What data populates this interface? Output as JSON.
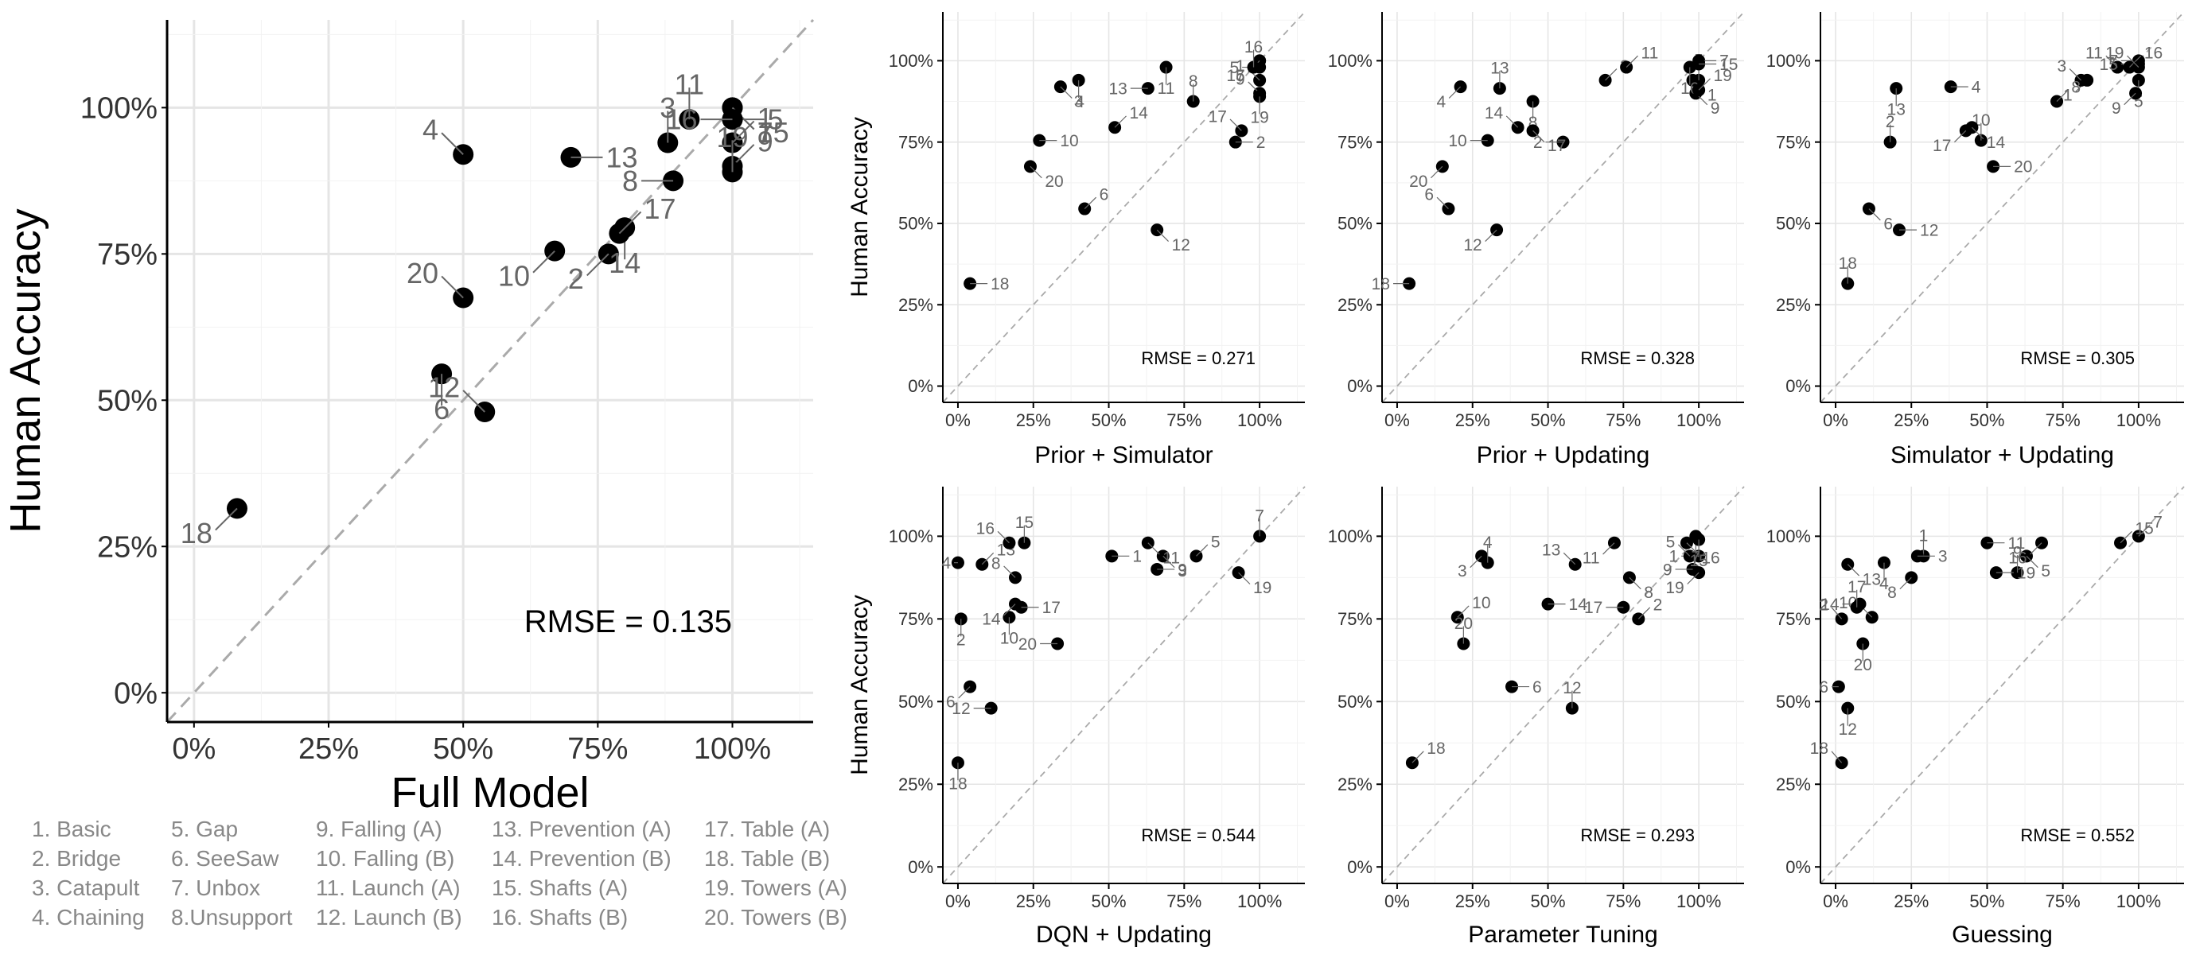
{
  "chart_data": [
    {
      "type": "scatter",
      "xlabel": "Full Model",
      "ylabel": "Human Accuracy",
      "xlim": [
        -0.05,
        1.15
      ],
      "ylim": [
        -0.05,
        1.15
      ],
      "x_ticks": [
        "0%",
        "25%",
        "50%",
        "75%",
        "100%"
      ],
      "y_ticks": [
        "0%",
        "25%",
        "50%",
        "75%",
        "100%"
      ],
      "grid": true,
      "reference_line": "y = x",
      "annotation": "RMSE = 0.135",
      "points": [
        {
          "label": "1",
          "x": 1.0,
          "y": 0.94
        },
        {
          "label": "2",
          "x": 0.77,
          "y": 0.75
        },
        {
          "label": "3",
          "x": 0.88,
          "y": 0.94
        },
        {
          "label": "4",
          "x": 0.5,
          "y": 0.92
        },
        {
          "label": "5",
          "x": 1.0,
          "y": 0.98
        },
        {
          "label": "6",
          "x": 0.46,
          "y": 0.545
        },
        {
          "label": "7",
          "x": 1.0,
          "y": 1.0
        },
        {
          "label": "8",
          "x": 0.89,
          "y": 0.875
        },
        {
          "label": "9",
          "x": 1.0,
          "y": 0.9
        },
        {
          "label": "10",
          "x": 0.67,
          "y": 0.755
        },
        {
          "label": "11",
          "x": 0.92,
          "y": 0.98
        },
        {
          "label": "12",
          "x": 0.54,
          "y": 0.48
        },
        {
          "label": "13",
          "x": 0.7,
          "y": 0.915
        },
        {
          "label": "14",
          "x": 0.8,
          "y": 0.795
        },
        {
          "label": "15",
          "x": 1.0,
          "y": 1.0
        },
        {
          "label": "16",
          "x": 1.0,
          "y": 0.98
        },
        {
          "label": "17",
          "x": 0.79,
          "y": 0.785
        },
        {
          "label": "18",
          "x": 0.08,
          "y": 0.315
        },
        {
          "label": "19",
          "x": 1.0,
          "y": 0.89
        },
        {
          "label": "20",
          "x": 0.5,
          "y": 0.675
        }
      ]
    },
    {
      "type": "scatter",
      "xlabel": "Prior + Simulator",
      "ylabel": "Human Accuracy",
      "xlim": [
        -0.05,
        1.15
      ],
      "ylim": [
        -0.05,
        1.15
      ],
      "x_ticks": [
        "0%",
        "25%",
        "50%",
        "75%",
        "100%"
      ],
      "y_ticks": [
        "0%",
        "25%",
        "50%",
        "75%",
        "100%"
      ],
      "grid": true,
      "reference_line": "y = x",
      "annotation": "RMSE = 0.271",
      "points": [
        {
          "label": "1",
          "x": 1.0,
          "y": 0.94
        },
        {
          "label": "2",
          "x": 0.92,
          "y": 0.75
        },
        {
          "label": "3",
          "x": 0.4,
          "y": 0.94
        },
        {
          "label": "4",
          "x": 0.34,
          "y": 0.92
        },
        {
          "label": "5",
          "x": 1.0,
          "y": 0.98
        },
        {
          "label": "6",
          "x": 0.42,
          "y": 0.545
        },
        {
          "label": "7",
          "x": 1.0,
          "y": 1.0
        },
        {
          "label": "8",
          "x": 0.78,
          "y": 0.875
        },
        {
          "label": "9",
          "x": 1.0,
          "y": 0.9
        },
        {
          "label": "10",
          "x": 0.27,
          "y": 0.755
        },
        {
          "label": "11",
          "x": 0.69,
          "y": 0.98
        },
        {
          "label": "12",
          "x": 0.66,
          "y": 0.48
        },
        {
          "label": "13",
          "x": 0.63,
          "y": 0.915
        },
        {
          "label": "14",
          "x": 0.52,
          "y": 0.795
        },
        {
          "label": "15",
          "x": 1.0,
          "y": 1.0
        },
        {
          "label": "16",
          "x": 0.98,
          "y": 0.98
        },
        {
          "label": "17",
          "x": 0.94,
          "y": 0.785
        },
        {
          "label": "18",
          "x": 0.04,
          "y": 0.315
        },
        {
          "label": "19",
          "x": 1.0,
          "y": 0.89
        },
        {
          "label": "20",
          "x": 0.24,
          "y": 0.675
        }
      ]
    },
    {
      "type": "scatter",
      "xlabel": "Prior + Updating",
      "ylabel": "",
      "xlim": [
        -0.05,
        1.15
      ],
      "ylim": [
        -0.05,
        1.15
      ],
      "x_ticks": [
        "0%",
        "25%",
        "50%",
        "75%",
        "100%"
      ],
      "y_ticks": [
        "0%",
        "25%",
        "50%",
        "75%",
        "100%"
      ],
      "grid": true,
      "reference_line": "y = x",
      "annotation": "RMSE = 0.328",
      "points": [
        {
          "label": "1",
          "x": 0.98,
          "y": 0.94
        },
        {
          "label": "2",
          "x": 0.55,
          "y": 0.75
        },
        {
          "label": "3",
          "x": 0.69,
          "y": 0.94
        },
        {
          "label": "4",
          "x": 0.21,
          "y": 0.92
        },
        {
          "label": "5",
          "x": 1.0,
          "y": 0.94
        },
        {
          "label": "6",
          "x": 0.17,
          "y": 0.545
        },
        {
          "label": "7",
          "x": 1.0,
          "y": 1.0
        },
        {
          "label": "8",
          "x": 0.45,
          "y": 0.875
        },
        {
          "label": "9",
          "x": 0.99,
          "y": 0.9
        },
        {
          "label": "10",
          "x": 0.3,
          "y": 0.755
        },
        {
          "label": "11",
          "x": 0.76,
          "y": 0.98
        },
        {
          "label": "12",
          "x": 0.33,
          "y": 0.48
        },
        {
          "label": "13",
          "x": 0.34,
          "y": 0.915
        },
        {
          "label": "14",
          "x": 0.4,
          "y": 0.795
        },
        {
          "label": "15",
          "x": 1.0,
          "y": 0.99
        },
        {
          "label": "16",
          "x": 0.97,
          "y": 0.98
        },
        {
          "label": "17",
          "x": 0.45,
          "y": 0.785
        },
        {
          "label": "18",
          "x": 0.04,
          "y": 0.315
        },
        {
          "label": "19",
          "x": 1.0,
          "y": 0.91
        },
        {
          "label": "20",
          "x": 0.15,
          "y": 0.675
        }
      ]
    },
    {
      "type": "scatter",
      "xlabel": "Simulator + Updating",
      "ylabel": "",
      "xlim": [
        -0.05,
        1.15
      ],
      "ylim": [
        -0.05,
        1.15
      ],
      "x_ticks": [
        "0%",
        "25%",
        "50%",
        "75%",
        "100%"
      ],
      "y_ticks": [
        "0%",
        "25%",
        "50%",
        "75%",
        "100%"
      ],
      "grid": true,
      "reference_line": "y = x",
      "annotation": "RMSE = 0.305",
      "points": [
        {
          "label": "1",
          "x": 0.83,
          "y": 0.94
        },
        {
          "label": "2",
          "x": 0.18,
          "y": 0.75
        },
        {
          "label": "3",
          "x": 0.81,
          "y": 0.94
        },
        {
          "label": "4",
          "x": 0.38,
          "y": 0.92
        },
        {
          "label": "5",
          "x": 1.0,
          "y": 0.94
        },
        {
          "label": "6",
          "x": 0.11,
          "y": 0.545
        },
        {
          "label": "7",
          "x": 1.0,
          "y": 1.0
        },
        {
          "label": "8",
          "x": 0.73,
          "y": 0.875
        },
        {
          "label": "9",
          "x": 0.99,
          "y": 0.9
        },
        {
          "label": "10",
          "x": 0.48,
          "y": 0.755
        },
        {
          "label": "11",
          "x": 0.93,
          "y": 0.98
        },
        {
          "label": "12",
          "x": 0.21,
          "y": 0.48
        },
        {
          "label": "13",
          "x": 0.2,
          "y": 0.915
        },
        {
          "label": "14",
          "x": 0.45,
          "y": 0.795
        },
        {
          "label": "15",
          "x": 1.0,
          "y": 0.99
        },
        {
          "label": "16",
          "x": 0.97,
          "y": 0.98
        },
        {
          "label": "17",
          "x": 0.43,
          "y": 0.785
        },
        {
          "label": "18",
          "x": 0.04,
          "y": 0.315
        },
        {
          "label": "19",
          "x": 1.0,
          "y": 0.98
        },
        {
          "label": "20",
          "x": 0.52,
          "y": 0.675
        }
      ]
    },
    {
      "type": "scatter",
      "xlabel": "DQN + Updating",
      "ylabel": "Human Accuracy",
      "xlim": [
        -0.05,
        1.15
      ],
      "ylim": [
        -0.05,
        1.15
      ],
      "x_ticks": [
        "0%",
        "25%",
        "50%",
        "75%",
        "100%"
      ],
      "y_ticks": [
        "0%",
        "25%",
        "50%",
        "75%",
        "100%"
      ],
      "grid": true,
      "reference_line": "y = x",
      "annotation": "RMSE = 0.544",
      "points": [
        {
          "label": "1",
          "x": 0.51,
          "y": 0.94
        },
        {
          "label": "2",
          "x": 0.01,
          "y": 0.75
        },
        {
          "label": "3",
          "x": 0.68,
          "y": 0.94
        },
        {
          "label": "4",
          "x": 0.0,
          "y": 0.92
        },
        {
          "label": "5",
          "x": 0.79,
          "y": 0.94
        },
        {
          "label": "6",
          "x": 0.04,
          "y": 0.545
        },
        {
          "label": "7",
          "x": 1.0,
          "y": 1.0
        },
        {
          "label": "8",
          "x": 0.19,
          "y": 0.875
        },
        {
          "label": "9",
          "x": 0.66,
          "y": 0.9
        },
        {
          "label": "10",
          "x": 0.17,
          "y": 0.755
        },
        {
          "label": "11",
          "x": 0.63,
          "y": 0.98
        },
        {
          "label": "12",
          "x": 0.11,
          "y": 0.48
        },
        {
          "label": "13",
          "x": 0.08,
          "y": 0.915
        },
        {
          "label": "14",
          "x": 0.19,
          "y": 0.795
        },
        {
          "label": "15",
          "x": 0.22,
          "y": 0.98
        },
        {
          "label": "16",
          "x": 0.17,
          "y": 0.98
        },
        {
          "label": "17",
          "x": 0.21,
          "y": 0.785
        },
        {
          "label": "18",
          "x": 0.0,
          "y": 0.315
        },
        {
          "label": "19",
          "x": 0.93,
          "y": 0.89
        },
        {
          "label": "20",
          "x": 0.33,
          "y": 0.675
        }
      ]
    },
    {
      "type": "scatter",
      "xlabel": "Parameter Tuning",
      "ylabel": "",
      "xlim": [
        -0.05,
        1.15
      ],
      "ylim": [
        -0.05,
        1.15
      ],
      "x_ticks": [
        "0%",
        "25%",
        "50%",
        "75%",
        "100%"
      ],
      "y_ticks": [
        "0%",
        "25%",
        "50%",
        "75%",
        "100%"
      ],
      "grid": true,
      "reference_line": "y = x",
      "annotation": "RMSE = 0.293",
      "points": [
        {
          "label": "1",
          "x": 1.0,
          "y": 0.94
        },
        {
          "label": "2",
          "x": 0.8,
          "y": 0.75
        },
        {
          "label": "3",
          "x": 0.28,
          "y": 0.94
        },
        {
          "label": "4",
          "x": 0.3,
          "y": 0.92
        },
        {
          "label": "5",
          "x": 0.97,
          "y": 0.94
        },
        {
          "label": "6",
          "x": 0.38,
          "y": 0.545
        },
        {
          "label": "7",
          "x": 0.99,
          "y": 1.0
        },
        {
          "label": "8",
          "x": 0.77,
          "y": 0.875
        },
        {
          "label": "9",
          "x": 0.98,
          "y": 0.9
        },
        {
          "label": "10",
          "x": 0.2,
          "y": 0.755
        },
        {
          "label": "11",
          "x": 0.72,
          "y": 0.98
        },
        {
          "label": "12",
          "x": 0.58,
          "y": 0.48
        },
        {
          "label": "13",
          "x": 0.59,
          "y": 0.915
        },
        {
          "label": "14",
          "x": 0.5,
          "y": 0.795
        },
        {
          "label": "15",
          "x": 1.0,
          "y": 0.99
        },
        {
          "label": "16",
          "x": 0.96,
          "y": 0.98
        },
        {
          "label": "17",
          "x": 0.75,
          "y": 0.785
        },
        {
          "label": "18",
          "x": 0.05,
          "y": 0.315
        },
        {
          "label": "19",
          "x": 1.0,
          "y": 0.89
        },
        {
          "label": "20",
          "x": 0.22,
          "y": 0.675
        }
      ]
    },
    {
      "type": "scatter",
      "xlabel": "Guessing",
      "ylabel": "",
      "xlim": [
        -0.05,
        1.15
      ],
      "ylim": [
        -0.05,
        1.15
      ],
      "x_ticks": [
        "0%",
        "25%",
        "50%",
        "75%",
        "100%"
      ],
      "y_ticks": [
        "0%",
        "25%",
        "50%",
        "75%",
        "100%"
      ],
      "grid": true,
      "reference_line": "y = x",
      "annotation": "RMSE = 0.552",
      "points": [
        {
          "label": "1",
          "x": 0.29,
          "y": 0.94
        },
        {
          "label": "2",
          "x": 0.02,
          "y": 0.75
        },
        {
          "label": "3",
          "x": 0.27,
          "y": 0.94
        },
        {
          "label": "4",
          "x": 0.16,
          "y": 0.92
        },
        {
          "label": "5",
          "x": 0.63,
          "y": 0.94
        },
        {
          "label": "6",
          "x": 0.01,
          "y": 0.545
        },
        {
          "label": "7",
          "x": 1.0,
          "y": 1.0
        },
        {
          "label": "8",
          "x": 0.25,
          "y": 0.875
        },
        {
          "label": "9",
          "x": 0.6,
          "y": 0.89
        },
        {
          "label": "10",
          "x": 0.12,
          "y": 0.755
        },
        {
          "label": "11",
          "x": 0.5,
          "y": 0.98
        },
        {
          "label": "12",
          "x": 0.04,
          "y": 0.48
        },
        {
          "label": "13",
          "x": 0.04,
          "y": 0.915
        },
        {
          "label": "14",
          "x": 0.08,
          "y": 0.795
        },
        {
          "label": "15",
          "x": 0.94,
          "y": 0.98
        },
        {
          "label": "16",
          "x": 0.68,
          "y": 0.98
        },
        {
          "label": "17",
          "x": 0.07,
          "y": 0.785
        },
        {
          "label": "18",
          "x": 0.02,
          "y": 0.315
        },
        {
          "label": "19",
          "x": 0.53,
          "y": 0.89
        },
        {
          "label": "20",
          "x": 0.09,
          "y": 0.675
        }
      ]
    }
  ],
  "legend": {
    "columns": [
      [
        "1. Basic",
        "2. Bridge",
        "3. Catapult",
        "4. Chaining"
      ],
      [
        "5. Gap",
        "6. SeeSaw",
        "7. Unbox",
        "8.Unsupport"
      ],
      [
        "9. Falling (A)",
        "10. Falling (B)",
        "11. Launch (A)",
        "12. Launch (B)"
      ],
      [
        "13. Prevention (A)",
        "14. Prevention (B)",
        "15. Shafts (A)",
        "16. Shafts (B)"
      ],
      [
        "17. Table (A)",
        "18. Table (B)",
        "19. Towers (A)",
        "20. Towers (B)"
      ]
    ]
  },
  "colors": {
    "point": "#000000",
    "grid": "#e5e5e5",
    "axis": "#000000",
    "reference_line": "#aaaaaa",
    "label": "#666666",
    "legend_text": "#888888"
  }
}
